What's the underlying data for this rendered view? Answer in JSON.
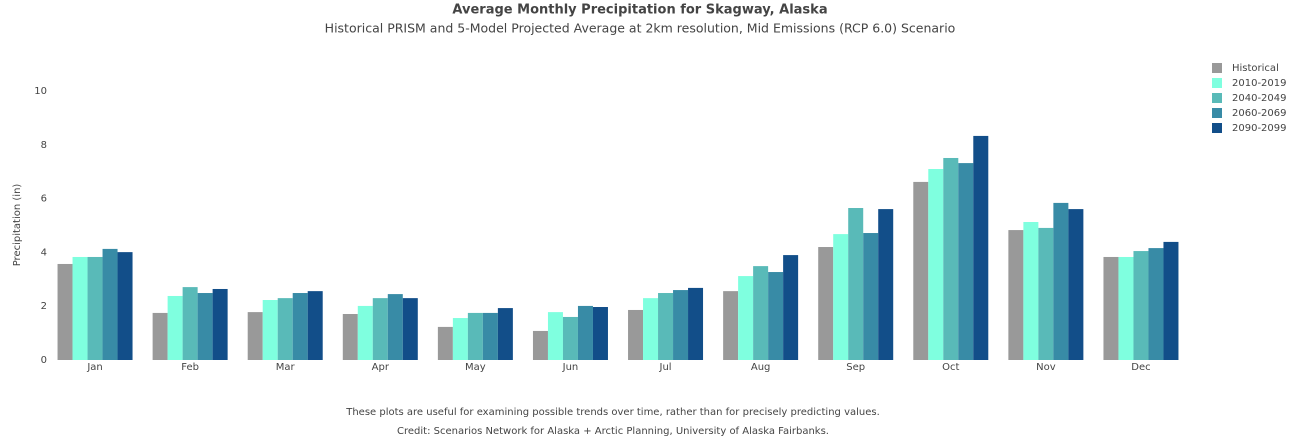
{
  "chart_data": {
    "type": "bar",
    "title": "Average Monthly Precipitation for Skagway, Alaska",
    "subtitle": "Historical PRISM and 5-Model Projected Average at 2km resolution, Mid Emissions (RCP 6.0) Scenario",
    "y_label": "Precipitation (in)",
    "categories": [
      "Jan",
      "Feb",
      "Mar",
      "Apr",
      "May",
      "Jun",
      "Jul",
      "Aug",
      "Sep",
      "Oct",
      "Nov",
      "Dec"
    ],
    "series": [
      {
        "name": "Historical",
        "color": "#999999",
        "values": [
          3.57,
          1.75,
          1.78,
          1.71,
          1.23,
          1.08,
          1.86,
          2.56,
          4.2,
          6.62,
          4.83,
          3.83
        ]
      },
      {
        "name": "2010-2019",
        "color": "#7fffdf",
        "values": [
          3.83,
          2.38,
          2.23,
          2.01,
          1.56,
          1.78,
          2.3,
          3.12,
          4.68,
          7.1,
          5.13,
          3.83
        ]
      },
      {
        "name": "2040-2049",
        "color": "#59bab8",
        "values": [
          3.83,
          2.71,
          2.3,
          2.3,
          1.75,
          1.6,
          2.49,
          3.49,
          5.65,
          7.51,
          4.91,
          4.05
        ]
      },
      {
        "name": "2060-2069",
        "color": "#388ba6",
        "values": [
          4.13,
          2.49,
          2.49,
          2.45,
          1.75,
          2.01,
          2.6,
          3.27,
          4.72,
          7.32,
          5.84,
          4.16
        ]
      },
      {
        "name": "2090-2099",
        "color": "#124e89",
        "values": [
          4.01,
          2.64,
          2.56,
          2.3,
          1.93,
          1.97,
          2.68,
          3.9,
          5.61,
          8.33,
          5.61,
          4.39
        ]
      }
    ],
    "ylim": [
      0,
      10.5
    ],
    "yticks": [
      0,
      2,
      4,
      6,
      8,
      10
    ],
    "grid": false,
    "legend": "right",
    "footnotes": [
      "These plots are useful for examining possible trends over time, rather than for precisely predicting values.",
      "Credit: Scenarios Network for Alaska + Arctic Planning, University of Alaska Fairbanks."
    ]
  }
}
